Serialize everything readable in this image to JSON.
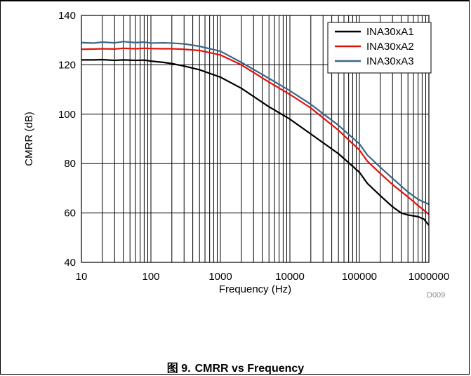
{
  "figure": {
    "caption_prefix": "图 9.",
    "caption_title": "CMRR vs Frequency",
    "code": "D009"
  },
  "colors": {
    "INA30xA1": "#000000",
    "INA30xA2": "#e3120b",
    "INA30xA3": "#3a6787",
    "grid": "#000000"
  },
  "chart_data": {
    "type": "line",
    "xscale": "log",
    "xlabel": "Frequency (Hz)",
    "ylabel": "CMRR (dB)",
    "xlim": [
      10,
      1000000
    ],
    "ylim": [
      40,
      140
    ],
    "xticks": [
      "10",
      "100",
      "1000",
      "10000",
      "100000",
      "1000000"
    ],
    "yticks": [
      "40",
      "60",
      "80",
      "100",
      "120",
      "140"
    ],
    "grid": true,
    "legend_position": "top-right",
    "series": [
      {
        "name": "INA30xA1",
        "x": [
          10,
          15,
          20,
          30,
          40,
          60,
          80,
          100,
          150,
          200,
          300,
          500,
          1000,
          2000,
          5000,
          10000,
          20000,
          50000,
          100000,
          130000,
          200000,
          300000,
          400000,
          500000,
          700000,
          850000,
          1000000
        ],
        "y": [
          122,
          122,
          122.1,
          121.8,
          122,
          121.8,
          121.9,
          121.5,
          121,
          120.5,
          119.5,
          118,
          115,
          110.5,
          103,
          98,
          92,
          84,
          76.5,
          72,
          67,
          62.5,
          60,
          59.2,
          58.5,
          57.5,
          55
        ]
      },
      {
        "name": "INA30xA2",
        "x": [
          10,
          15,
          20,
          30,
          40,
          60,
          80,
          100,
          150,
          200,
          300,
          500,
          1000,
          2000,
          5000,
          10000,
          20000,
          50000,
          100000,
          130000,
          200000,
          300000,
          500000,
          700000,
          1000000
        ],
        "y": [
          126.3,
          126.4,
          126.5,
          126.4,
          126.7,
          126.5,
          126.7,
          126.6,
          126.5,
          126.5,
          126.3,
          125.8,
          124,
          120,
          113,
          108,
          102.5,
          93.5,
          85.5,
          81,
          76,
          71.5,
          66.5,
          63,
          59.5
        ]
      },
      {
        "name": "INA30xA3",
        "x": [
          10,
          15,
          20,
          30,
          40,
          60,
          80,
          100,
          150,
          200,
          300,
          500,
          1000,
          2000,
          5000,
          10000,
          20000,
          50000,
          100000,
          130000,
          200000,
          300000,
          500000,
          700000,
          1000000
        ],
        "y": [
          129,
          128.8,
          129.2,
          128.9,
          129.4,
          129,
          129.2,
          128.8,
          128.9,
          128.8,
          128.5,
          127.5,
          125.5,
          121,
          114.5,
          109.5,
          104,
          95.5,
          88,
          83.5,
          78.5,
          74,
          68.5,
          65.5,
          63.5
        ]
      }
    ]
  }
}
